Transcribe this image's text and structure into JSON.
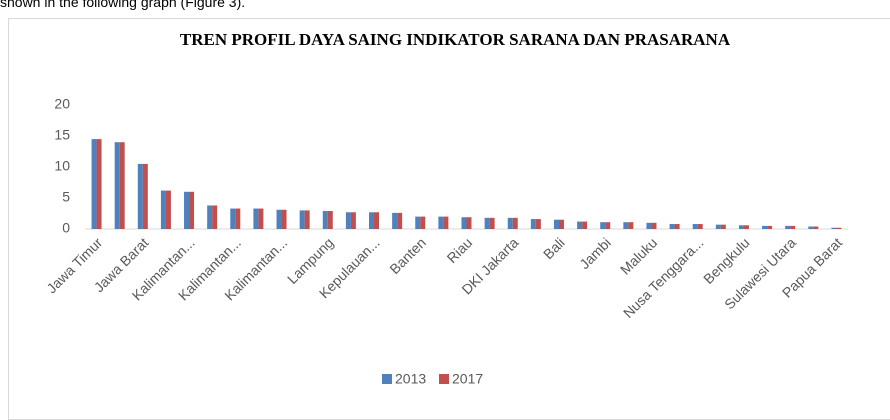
{
  "page_text": "shown in the following graph (Figure 3).",
  "chart_data": {
    "type": "bar",
    "title": "TREN PROFIL DAYA SAING INDIKATOR SARANA DAN PRASARANA",
    "categories": [
      "Jawa Timur",
      null,
      "Jawa Barat",
      null,
      "Kalimantan...",
      null,
      "Kalimantan...",
      null,
      "Kalimantan...",
      null,
      "Lampung",
      null,
      "Kepulauan...",
      null,
      "Banten",
      null,
      "Riau",
      null,
      "DKI Jakarta",
      null,
      "Bali",
      null,
      "Jambi",
      null,
      "Maluku",
      null,
      "Nusa Tenggara...",
      null,
      "Bengkulu",
      null,
      "Sulawesi Utara",
      null,
      "Papua Barat"
    ],
    "series": [
      {
        "name": "2013",
        "color": "#4f81bd",
        "values": [
          14.5,
          14.0,
          10.5,
          6.2,
          6.0,
          3.8,
          3.3,
          3.3,
          3.1,
          3.0,
          2.9,
          2.7,
          2.7,
          2.6,
          2.0,
          2.0,
          1.9,
          1.8,
          1.8,
          1.6,
          1.5,
          1.2,
          1.1,
          1.1,
          1.0,
          0.8,
          0.8,
          0.7,
          0.6,
          0.5,
          0.5,
          0.4,
          0.2
        ]
      },
      {
        "name": "2017",
        "color": "#c0504d",
        "values": [
          14.5,
          14.0,
          10.5,
          6.2,
          6.0,
          3.8,
          3.3,
          3.3,
          3.1,
          3.0,
          2.9,
          2.7,
          2.7,
          2.6,
          2.0,
          2.0,
          1.9,
          1.8,
          1.8,
          1.6,
          1.5,
          1.2,
          1.1,
          1.1,
          1.0,
          0.8,
          0.8,
          0.7,
          0.6,
          0.5,
          0.5,
          0.4,
          0.2
        ]
      }
    ],
    "ylim": [
      0,
      20
    ],
    "yticks": [
      0,
      5,
      10,
      15,
      20
    ],
    "grid": false,
    "legend": "bottom"
  }
}
